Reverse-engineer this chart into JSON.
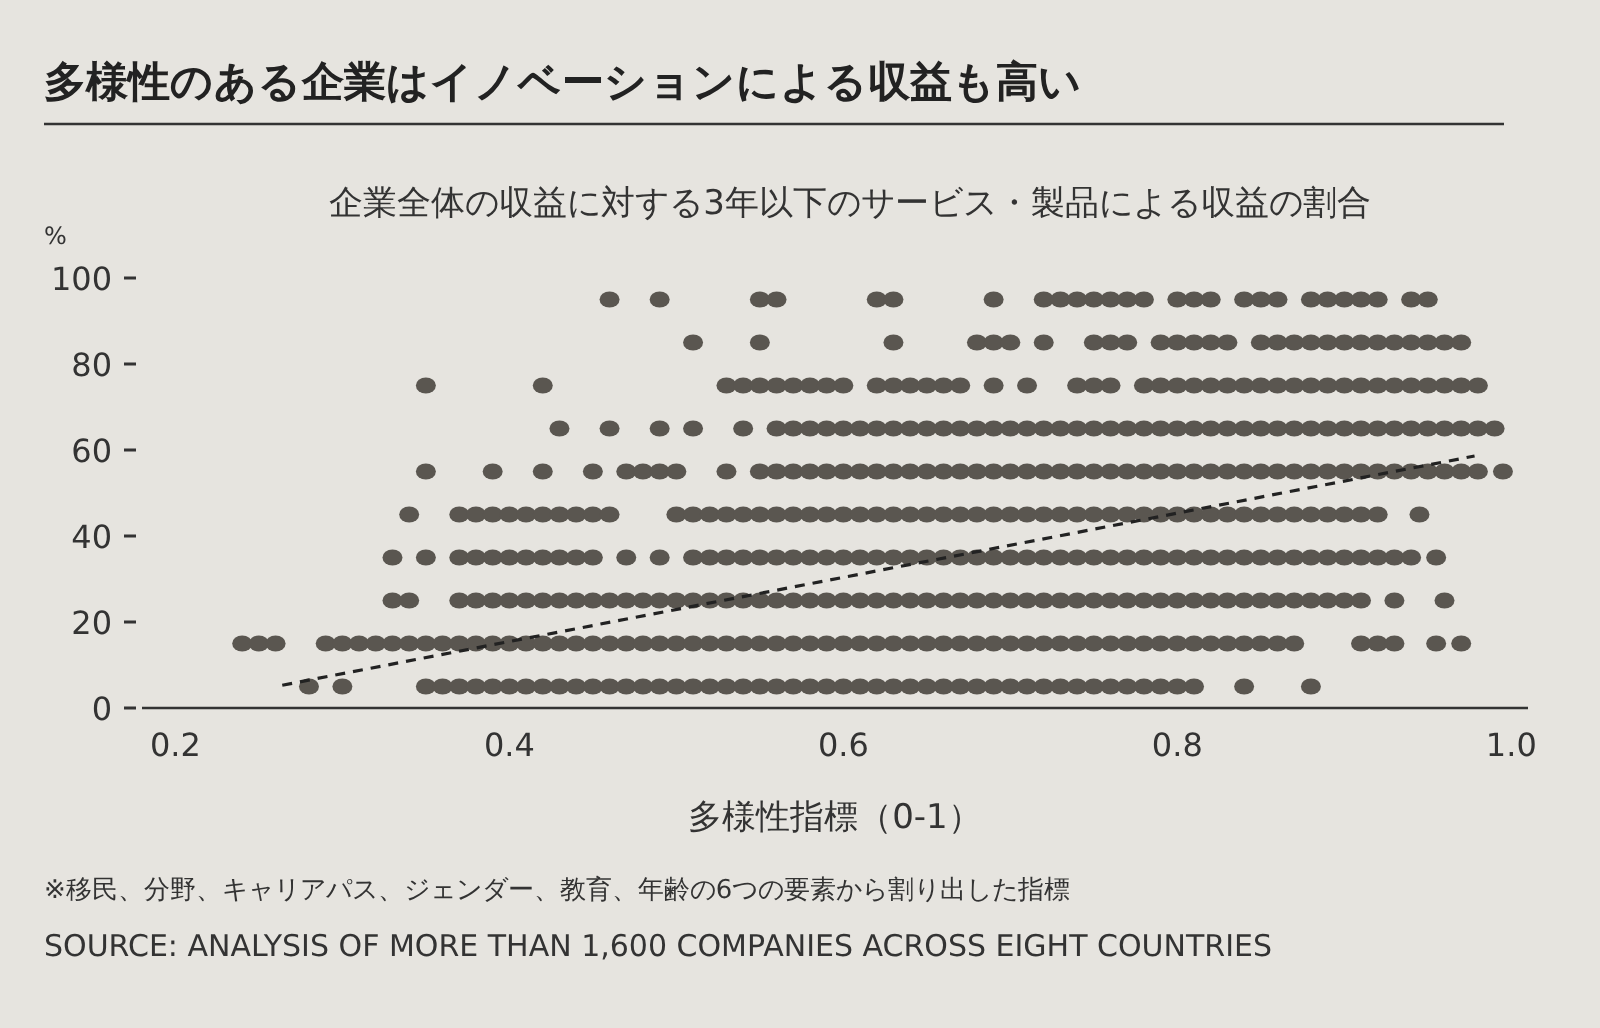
{
  "chart_data": {
    "type": "scatter",
    "title": "多様性のある企業はイノベーションによる収益も高い",
    "subtitle": "企業全体の収益に対する3年以下のサービス・製品による収益の割合",
    "xlabel": "多様性指標（0-1）",
    "ylabel": "%",
    "annotations": [
      "※移民、分野、キャリアパス、ジェンダー、教育、年齢の6つの要素から割り出した指標",
      "SOURCE: ANALYSIS OF MORE THAN 1,600 COMPANIES ACROSS EIGHT COUNTRIES"
    ],
    "xlim": [
      0.18,
      1.01
    ],
    "ylim": [
      0,
      100
    ],
    "xticks": [
      0.2,
      0.4,
      0.6,
      0.8,
      {
        "value": 1,
        "label": "1.0"
      }
    ],
    "yticks": [
      0,
      20,
      40,
      60,
      80,
      100
    ],
    "grid": false,
    "marker": "circle",
    "series": [
      {
        "color": "#5a5650",
        "x": [
          0.46,
          0.49,
          0.55,
          0.56,
          0.62,
          0.63,
          0.69,
          0.72,
          0.73,
          0.74,
          0.75,
          0.76,
          0.77,
          0.78,
          0.8,
          0.81,
          0.82,
          0.84,
          0.85,
          0.86,
          0.88,
          0.89,
          0.9,
          0.91,
          0.92,
          0.94,
          0.95
        ],
        "values": [
          95,
          95,
          95,
          95,
          95,
          95,
          95,
          95,
          95,
          95,
          95,
          95,
          95,
          95,
          95,
          95,
          95,
          95,
          95,
          95,
          95,
          95,
          95,
          95,
          95,
          95,
          95
        ]
      },
      {
        "color": "#5a5650",
        "x": [
          0.51,
          0.55,
          0.63,
          0.68,
          0.69,
          0.7,
          0.72,
          0.75,
          0.76,
          0.77,
          0.79,
          0.8,
          0.81,
          0.82,
          0.83,
          0.85,
          0.86,
          0.87,
          0.88,
          0.89,
          0.9,
          0.91,
          0.92,
          0.93,
          0.94,
          0.95,
          0.96,
          0.97
        ],
        "values": [
          85,
          85,
          85,
          85,
          85,
          85,
          85,
          85,
          85,
          85,
          85,
          85,
          85,
          85,
          85,
          85,
          85,
          85,
          85,
          85,
          85,
          85,
          85,
          85,
          85,
          85,
          85,
          85
        ]
      },
      {
        "color": "#5a5650",
        "x": [
          0.35,
          0.42,
          0.53,
          0.54,
          0.55,
          0.56,
          0.57,
          0.58,
          0.59,
          0.6,
          0.62,
          0.63,
          0.64,
          0.65,
          0.66,
          0.67,
          0.69,
          0.71,
          0.74,
          0.75,
          0.76,
          0.78,
          0.79,
          0.8,
          0.81,
          0.82,
          0.83,
          0.84,
          0.85,
          0.86,
          0.87,
          0.88,
          0.89,
          0.9,
          0.91,
          0.92,
          0.93,
          0.94,
          0.95,
          0.96,
          0.97,
          0.98
        ],
        "values": [
          75,
          75,
          75,
          75,
          75,
          75,
          75,
          75,
          75,
          75,
          75,
          75,
          75,
          75,
          75,
          75,
          75,
          75,
          75,
          75,
          75,
          75,
          75,
          75,
          75,
          75,
          75,
          75,
          75,
          75,
          75,
          75,
          75,
          75,
          75,
          75,
          75,
          75,
          75,
          75,
          75,
          75
        ]
      },
      {
        "color": "#5a5650",
        "x": [
          0.43,
          0.46,
          0.49,
          0.51,
          0.54,
          0.56,
          0.57,
          0.58,
          0.59,
          0.6,
          0.61,
          0.62,
          0.63,
          0.64,
          0.65,
          0.66,
          0.67,
          0.68,
          0.69,
          0.7,
          0.71,
          0.72,
          0.73,
          0.74,
          0.75,
          0.76,
          0.77,
          0.78,
          0.79,
          0.8,
          0.81,
          0.82,
          0.83,
          0.84,
          0.85,
          0.86,
          0.87,
          0.88,
          0.89,
          0.9,
          0.91,
          0.92,
          0.93,
          0.94,
          0.95,
          0.96,
          0.97,
          0.98,
          0.99
        ],
        "values": [
          65,
          65,
          65,
          65,
          65,
          65,
          65,
          65,
          65,
          65,
          65,
          65,
          65,
          65,
          65,
          65,
          65,
          65,
          65,
          65,
          65,
          65,
          65,
          65,
          65,
          65,
          65,
          65,
          65,
          65,
          65,
          65,
          65,
          65,
          65,
          65,
          65,
          65,
          65,
          65,
          65,
          65,
          65,
          65,
          65,
          65,
          65,
          65,
          65
        ]
      },
      {
        "color": "#5a5650",
        "x": [
          0.35,
          0.39,
          0.42,
          0.45,
          0.47,
          0.48,
          0.49,
          0.5,
          0.53,
          0.55,
          0.56,
          0.57,
          0.58,
          0.59,
          0.6,
          0.61,
          0.62,
          0.63,
          0.64,
          0.65,
          0.66,
          0.67,
          0.68,
          0.69,
          0.7,
          0.71,
          0.72,
          0.73,
          0.74,
          0.75,
          0.76,
          0.77,
          0.78,
          0.79,
          0.8,
          0.81,
          0.82,
          0.83,
          0.84,
          0.85,
          0.86,
          0.87,
          0.88,
          0.89,
          0.9,
          0.91,
          0.92,
          0.93,
          0.94,
          0.95,
          0.96,
          0.97,
          0.98,
          0.995
        ],
        "values": [
          55,
          55,
          55,
          55,
          55,
          55,
          55,
          55,
          55,
          55,
          55,
          55,
          55,
          55,
          55,
          55,
          55,
          55,
          55,
          55,
          55,
          55,
          55,
          55,
          55,
          55,
          55,
          55,
          55,
          55,
          55,
          55,
          55,
          55,
          55,
          55,
          55,
          55,
          55,
          55,
          55,
          55,
          55,
          55,
          55,
          55,
          55,
          55,
          55,
          55,
          55,
          55,
          55,
          55
        ]
      },
      {
        "color": "#5a5650",
        "x": [
          0.34,
          0.37,
          0.38,
          0.39,
          0.4,
          0.41,
          0.42,
          0.43,
          0.44,
          0.45,
          0.46,
          0.5,
          0.51,
          0.52,
          0.53,
          0.54,
          0.55,
          0.56,
          0.57,
          0.58,
          0.59,
          0.6,
          0.61,
          0.62,
          0.63,
          0.64,
          0.65,
          0.66,
          0.67,
          0.68,
          0.69,
          0.7,
          0.71,
          0.72,
          0.73,
          0.74,
          0.75,
          0.76,
          0.77,
          0.78,
          0.79,
          0.8,
          0.81,
          0.82,
          0.83,
          0.84,
          0.85,
          0.86,
          0.87,
          0.88,
          0.89,
          0.9,
          0.91,
          0.92,
          0.945
        ],
        "values": [
          45,
          45,
          45,
          45,
          45,
          45,
          45,
          45,
          45,
          45,
          45,
          45,
          45,
          45,
          45,
          45,
          45,
          45,
          45,
          45,
          45,
          45,
          45,
          45,
          45,
          45,
          45,
          45,
          45,
          45,
          45,
          45,
          45,
          45,
          45,
          45,
          45,
          45,
          45,
          45,
          45,
          45,
          45,
          45,
          45,
          45,
          45,
          45,
          45,
          45,
          45,
          45,
          45,
          45,
          45
        ]
      },
      {
        "color": "#5a5650",
        "x": [
          0.33,
          0.35,
          0.37,
          0.38,
          0.39,
          0.4,
          0.41,
          0.42,
          0.43,
          0.44,
          0.45,
          0.47,
          0.49,
          0.51,
          0.52,
          0.53,
          0.54,
          0.55,
          0.56,
          0.57,
          0.58,
          0.59,
          0.6,
          0.61,
          0.62,
          0.63,
          0.64,
          0.65,
          0.66,
          0.67,
          0.68,
          0.69,
          0.7,
          0.71,
          0.72,
          0.73,
          0.74,
          0.75,
          0.76,
          0.77,
          0.78,
          0.79,
          0.8,
          0.81,
          0.82,
          0.83,
          0.84,
          0.85,
          0.86,
          0.87,
          0.88,
          0.89,
          0.9,
          0.91,
          0.92,
          0.93,
          0.94,
          0.955
        ],
        "values": [
          35,
          35,
          35,
          35,
          35,
          35,
          35,
          35,
          35,
          35,
          35,
          35,
          35,
          35,
          35,
          35,
          35,
          35,
          35,
          35,
          35,
          35,
          35,
          35,
          35,
          35,
          35,
          35,
          35,
          35,
          35,
          35,
          35,
          35,
          35,
          35,
          35,
          35,
          35,
          35,
          35,
          35,
          35,
          35,
          35,
          35,
          35,
          35,
          35,
          35,
          35,
          35,
          35,
          35,
          35,
          35,
          35,
          35
        ]
      },
      {
        "color": "#5a5650",
        "x": [
          0.33,
          0.34,
          0.37,
          0.38,
          0.39,
          0.4,
          0.41,
          0.42,
          0.43,
          0.44,
          0.45,
          0.46,
          0.47,
          0.48,
          0.49,
          0.5,
          0.51,
          0.52,
          0.53,
          0.54,
          0.55,
          0.56,
          0.57,
          0.58,
          0.59,
          0.6,
          0.61,
          0.62,
          0.63,
          0.64,
          0.65,
          0.66,
          0.67,
          0.68,
          0.69,
          0.7,
          0.71,
          0.72,
          0.73,
          0.74,
          0.75,
          0.76,
          0.77,
          0.78,
          0.79,
          0.8,
          0.81,
          0.82,
          0.83,
          0.84,
          0.85,
          0.86,
          0.87,
          0.88,
          0.89,
          0.9,
          0.91,
          0.93,
          0.96
        ],
        "values": [
          25,
          25,
          25,
          25,
          25,
          25,
          25,
          25,
          25,
          25,
          25,
          25,
          25,
          25,
          25,
          25,
          25,
          25,
          25,
          25,
          25,
          25,
          25,
          25,
          25,
          25,
          25,
          25,
          25,
          25,
          25,
          25,
          25,
          25,
          25,
          25,
          25,
          25,
          25,
          25,
          25,
          25,
          25,
          25,
          25,
          25,
          25,
          25,
          25,
          25,
          25,
          25,
          25,
          25,
          25,
          25,
          25,
          25,
          25
        ]
      },
      {
        "color": "#5a5650",
        "x": [
          0.24,
          0.25,
          0.26,
          0.29,
          0.3,
          0.31,
          0.32,
          0.33,
          0.34,
          0.35,
          0.36,
          0.37,
          0.38,
          0.39,
          0.4,
          0.41,
          0.42,
          0.43,
          0.44,
          0.45,
          0.46,
          0.47,
          0.48,
          0.49,
          0.5,
          0.51,
          0.52,
          0.53,
          0.54,
          0.55,
          0.56,
          0.57,
          0.58,
          0.59,
          0.6,
          0.61,
          0.62,
          0.63,
          0.64,
          0.65,
          0.66,
          0.67,
          0.68,
          0.69,
          0.7,
          0.71,
          0.72,
          0.73,
          0.74,
          0.75,
          0.76,
          0.77,
          0.78,
          0.79,
          0.8,
          0.81,
          0.82,
          0.83,
          0.84,
          0.85,
          0.86,
          0.87,
          0.91,
          0.92,
          0.93,
          0.955,
          0.97
        ],
        "values": [
          15,
          15,
          15,
          15,
          15,
          15,
          15,
          15,
          15,
          15,
          15,
          15,
          15,
          15,
          15,
          15,
          15,
          15,
          15,
          15,
          15,
          15,
          15,
          15,
          15,
          15,
          15,
          15,
          15,
          15,
          15,
          15,
          15,
          15,
          15,
          15,
          15,
          15,
          15,
          15,
          15,
          15,
          15,
          15,
          15,
          15,
          15,
          15,
          15,
          15,
          15,
          15,
          15,
          15,
          15,
          15,
          15,
          15,
          15,
          15,
          15,
          15,
          15,
          15,
          15,
          15,
          15
        ]
      },
      {
        "color": "#5a5650",
        "x": [
          0.28,
          0.3,
          0.35,
          0.36,
          0.37,
          0.38,
          0.39,
          0.4,
          0.41,
          0.42,
          0.43,
          0.44,
          0.45,
          0.46,
          0.47,
          0.48,
          0.49,
          0.5,
          0.51,
          0.52,
          0.53,
          0.54,
          0.55,
          0.56,
          0.57,
          0.58,
          0.59,
          0.6,
          0.61,
          0.62,
          0.63,
          0.64,
          0.65,
          0.66,
          0.67,
          0.68,
          0.69,
          0.7,
          0.71,
          0.72,
          0.73,
          0.74,
          0.75,
          0.76,
          0.77,
          0.78,
          0.79,
          0.8,
          0.81,
          0.84,
          0.88
        ],
        "values": [
          5,
          5,
          5,
          5,
          5,
          5,
          5,
          5,
          5,
          5,
          5,
          5,
          5,
          5,
          5,
          5,
          5,
          5,
          5,
          5,
          5,
          5,
          5,
          5,
          5,
          5,
          5,
          5,
          5,
          5,
          5,
          5,
          5,
          5,
          5,
          5,
          5,
          5,
          5,
          5,
          5,
          5,
          5,
          5,
          5,
          5,
          5,
          5,
          5,
          5,
          5
        ]
      },
      {
        "type": "line",
        "color": "#222222",
        "line_style": "dashed",
        "marker": "none",
        "x": [
          0.264,
          0.978
        ],
        "values": [
          5.3,
          58.6
        ]
      }
    ]
  }
}
